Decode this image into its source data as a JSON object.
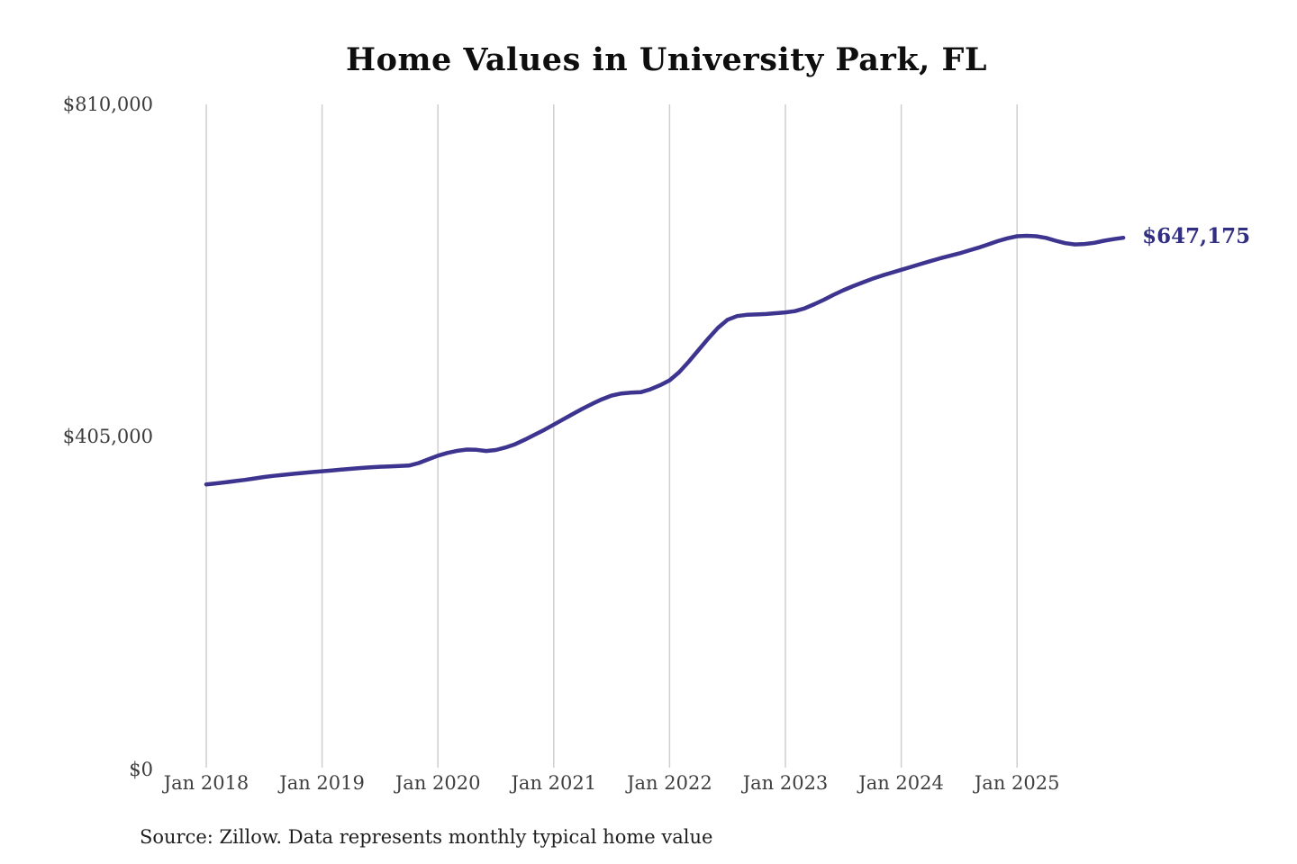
{
  "title": "Home Values in University Park, FL",
  "source_note": "Source: Zillow. Data represents monthly typical home value",
  "end_label": "$647,175",
  "colors": {
    "line": "#3d3490",
    "end_label_text": "#312e83",
    "grid": "#cfcfcf",
    "axis_text": "#3f3f3f",
    "title_text": "#0e0e0e",
    "background": "#ffffff"
  },
  "chart_data": {
    "type": "line",
    "title": "Home Values in University Park, FL",
    "xlabel": "",
    "ylabel": "",
    "ylim": [
      0,
      810000
    ],
    "grid": "vertical-only",
    "legend": "none",
    "frequency": "monthly",
    "x_start": "2018-01",
    "x_end": "2025-12",
    "x_tick_labels": [
      "Jan 2018",
      "Jan 2019",
      "Jan 2020",
      "Jan 2021",
      "Jan 2022",
      "Jan 2023",
      "Jan 2024",
      "Jan 2025"
    ],
    "y_tick_labels": [
      "$0",
      "$405,000",
      "$810,000"
    ],
    "final_value": 647175,
    "series": [
      {
        "name": "Monthly typical home value",
        "values": [
          346000,
          347200,
          348500,
          350000,
          351500,
          353200,
          355000,
          356400,
          357600,
          358800,
          359900,
          361000,
          362000,
          363000,
          364000,
          365000,
          366000,
          366800,
          367500,
          368000,
          368400,
          369000,
          372000,
          376500,
          381000,
          384500,
          387000,
          388500,
          388200,
          386800,
          388000,
          391000,
          395000,
          400500,
          406500,
          412500,
          419000,
          425500,
          432000,
          438500,
          444500,
          450000,
          454500,
          457000,
          458000,
          458500,
          462000,
          467000,
          473000,
          483000,
          496000,
          510000,
          524000,
          537000,
          547000,
          551500,
          553000,
          553500,
          554000,
          555000,
          556000,
          557500,
          561000,
          566000,
          571500,
          577500,
          583000,
          588000,
          592500,
          597000,
          601000,
          604500,
          608000,
          611500,
          615000,
          618500,
          622000,
          625000,
          628000,
          631500,
          635000,
          639000,
          643000,
          646500,
          649000,
          649500,
          649000,
          647000,
          643500,
          640500,
          639000,
          639500,
          641000,
          643500,
          645500,
          647175
        ]
      }
    ]
  }
}
